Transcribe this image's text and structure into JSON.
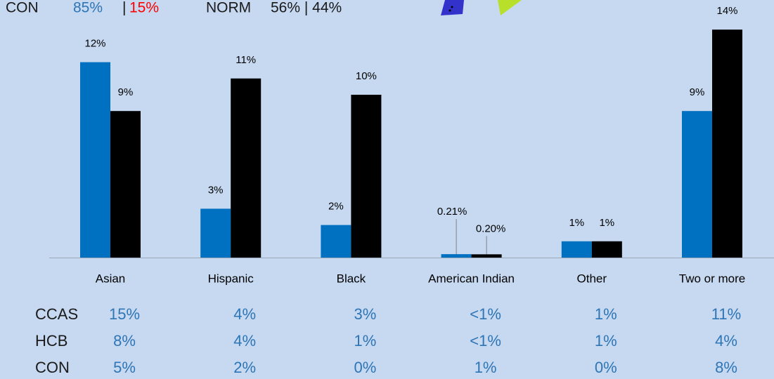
{
  "chart_data": {
    "type": "bar",
    "categories": [
      "Asian",
      "Hispanic",
      "Black",
      "American Indian",
      "Other",
      "Two or more"
    ],
    "series": [
      {
        "color": "#0070c0",
        "values": [
          12,
          3,
          2,
          0.21,
          1,
          9
        ],
        "value_labels": [
          "12%",
          "3%",
          "2%",
          "0.21%",
          "1%",
          "9%"
        ]
      },
      {
        "color": "#000000",
        "values": [
          9,
          11,
          10,
          0.2,
          1,
          14
        ],
        "value_labels": [
          "9%",
          "11%",
          "10%",
          "0.20%",
          "1%",
          "14%"
        ]
      }
    ]
  },
  "header": {
    "con_label": "CON",
    "con_a": "85%",
    "con_sep": "|",
    "con_b": "15%",
    "norm_label": "NORM",
    "norm_values": "56% | 44%"
  },
  "table": {
    "rows": [
      {
        "label": "CCAS",
        "cells": [
          "15%",
          "4%",
          "3%",
          "<1%",
          "1%",
          "11%"
        ]
      },
      {
        "label": "HCB",
        "cells": [
          "8%",
          "4%",
          "1%",
          "<1%",
          "1%",
          "4%"
        ]
      },
      {
        "label": "CON",
        "cells": [
          "5%",
          "2%",
          "0%",
          "1%",
          "0%",
          "8%"
        ]
      }
    ]
  }
}
